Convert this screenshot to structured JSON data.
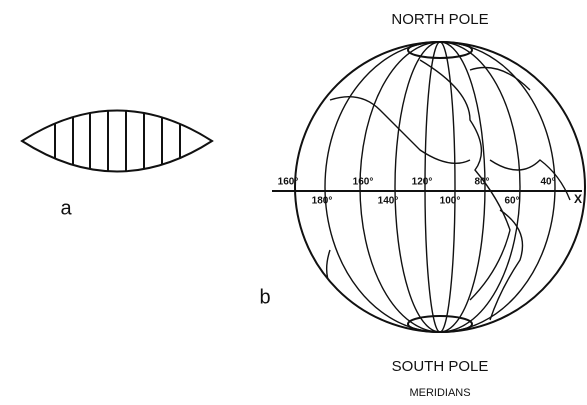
{
  "figure_a": {
    "label": "a"
  },
  "figure_b": {
    "label": "b",
    "north_pole": "NORTH POLE",
    "south_pole": "SOUTH POLE",
    "caption": "MERIDIANS",
    "longitudes_upper": [
      "160°",
      "160°",
      "120°",
      "80°",
      "40°"
    ],
    "longitudes_lower": [
      "180°",
      "140°",
      "100°",
      "60°"
    ],
    "axis_end": "X"
  }
}
